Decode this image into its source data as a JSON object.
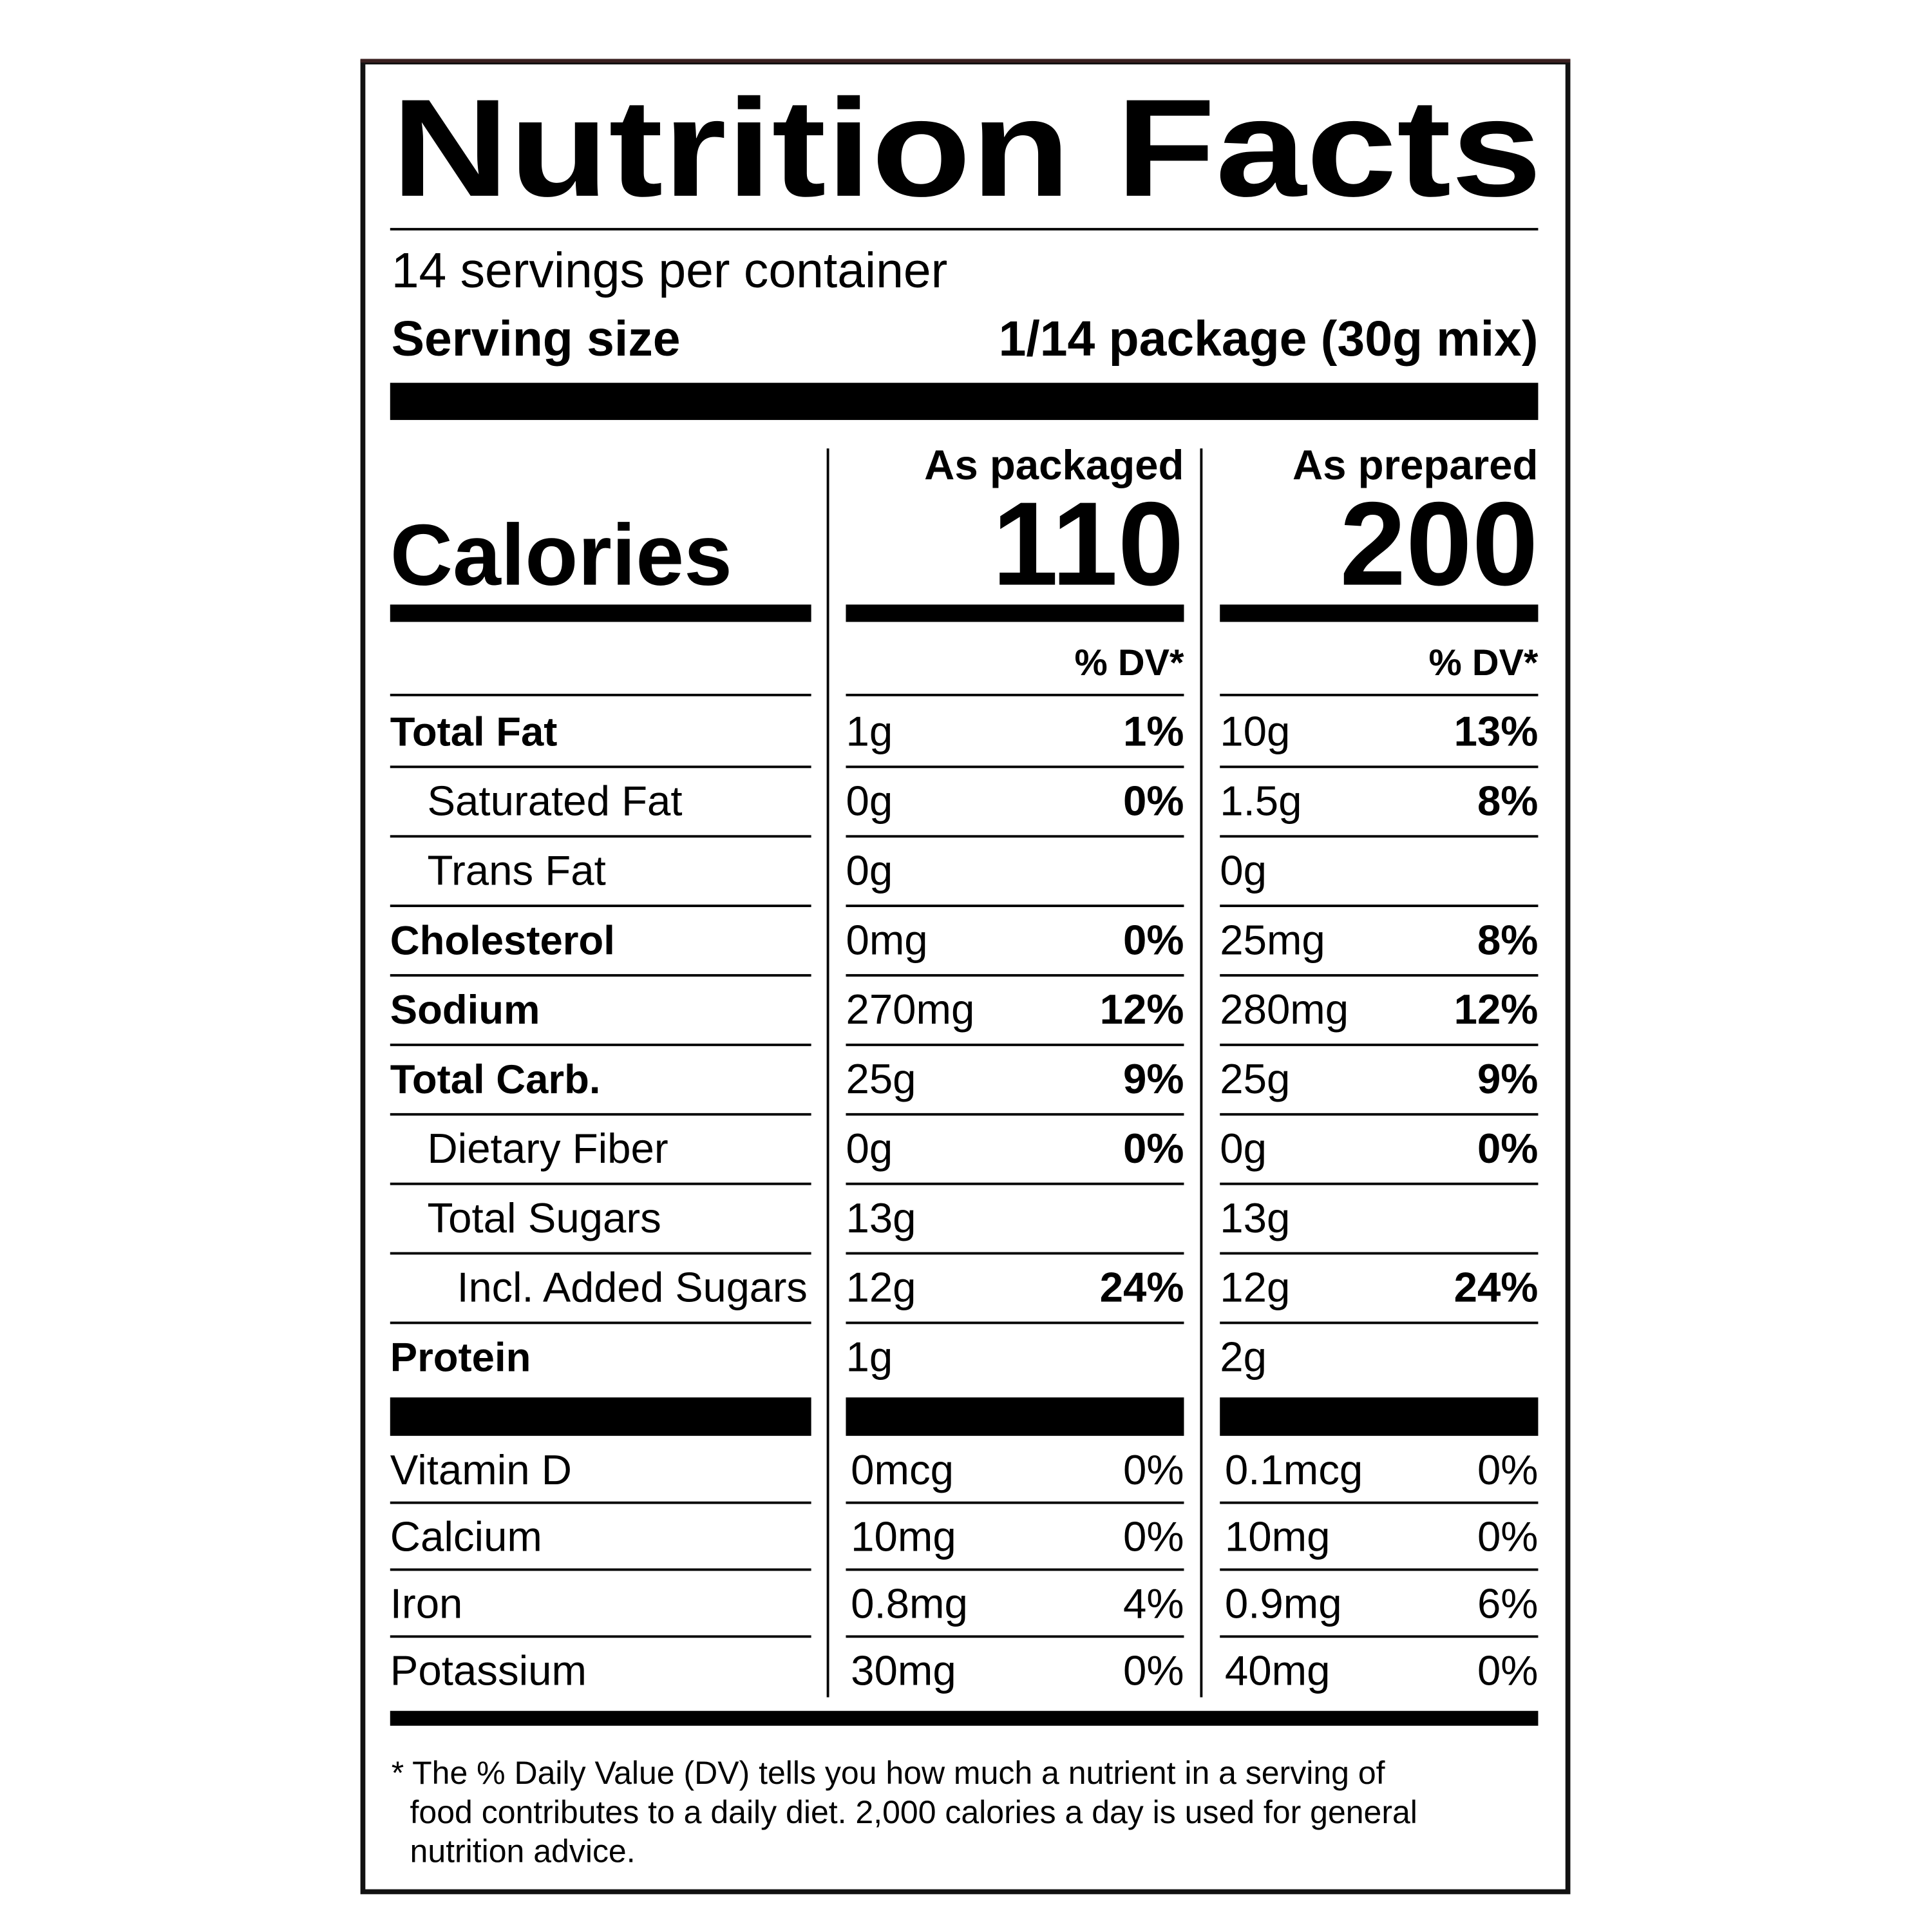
{
  "header": {
    "title": "Nutrition Facts",
    "servings": "14 servings per container",
    "serving_size_label": "Serving size",
    "serving_size": "1/14 package (30g mix)"
  },
  "calories_label": "Calories",
  "columns": [
    {
      "heading": "As packaged",
      "calories": "110",
      "dv_heading": "% DV*"
    },
    {
      "heading": "As prepared",
      "calories": "200",
      "dv_heading": "% DV*"
    }
  ],
  "nutrients": [
    {
      "name": "Total Fat",
      "packaged": {
        "amount": "1g",
        "dv": "1%"
      },
      "prepared": {
        "amount": "10g",
        "dv": "13%"
      }
    },
    {
      "name": "Saturated Fat",
      "packaged": {
        "amount": "0g",
        "dv": "0%"
      },
      "prepared": {
        "amount": "1.5g",
        "dv": "8%"
      }
    },
    {
      "name": "Trans Fat",
      "packaged": {
        "amount": "0g",
        "dv": null
      },
      "prepared": {
        "amount": "0g",
        "dv": null
      }
    },
    {
      "name": "Cholesterol",
      "packaged": {
        "amount": "0mg",
        "dv": "0%"
      },
      "prepared": {
        "amount": "25mg",
        "dv": "8%"
      }
    },
    {
      "name": "Sodium",
      "packaged": {
        "amount": "270mg",
        "dv": "12%"
      },
      "prepared": {
        "amount": "280mg",
        "dv": "12%"
      }
    },
    {
      "name": "Total Carb.",
      "packaged": {
        "amount": "25g",
        "dv": "9%"
      },
      "prepared": {
        "amount": "25g",
        "dv": "9%"
      }
    },
    {
      "name": "Dietary Fiber",
      "packaged": {
        "amount": "0g",
        "dv": "0%"
      },
      "prepared": {
        "amount": "0g",
        "dv": "0%"
      }
    },
    {
      "name": "Total Sugars",
      "packaged": {
        "amount": "13g",
        "dv": null
      },
      "prepared": {
        "amount": "13g",
        "dv": null
      }
    },
    {
      "name": "Incl. Added Sugars",
      "packaged": {
        "amount": "12g",
        "dv": "24%"
      },
      "prepared": {
        "amount": "12g",
        "dv": "24%"
      }
    },
    {
      "name": "Protein",
      "packaged": {
        "amount": "1g",
        "dv": null
      },
      "prepared": {
        "amount": "2g",
        "dv": null
      }
    }
  ],
  "vitamins": [
    {
      "name": "Vitamin D",
      "packaged": {
        "amount": "0mcg",
        "dv": "0%"
      },
      "prepared": {
        "amount": "0.1mcg",
        "dv": "0%"
      }
    },
    {
      "name": "Calcium",
      "packaged": {
        "amount": "10mg",
        "dv": "0%"
      },
      "prepared": {
        "amount": "10mg",
        "dv": "0%"
      }
    },
    {
      "name": "Iron",
      "packaged": {
        "amount": "0.8mg",
        "dv": "4%"
      },
      "prepared": {
        "amount": "0.9mg",
        "dv": "6%"
      }
    },
    {
      "name": "Potassium",
      "packaged": {
        "amount": "30mg",
        "dv": "0%"
      },
      "prepared": {
        "amount": "40mg",
        "dv": "0%"
      }
    }
  ],
  "footnote": [
    "* The % Daily Value (DV) tells you how much a nutrient in a serving of",
    "food contributes to a daily diet. 2,000 calories a day is used for general",
    "nutrition advice."
  ]
}
